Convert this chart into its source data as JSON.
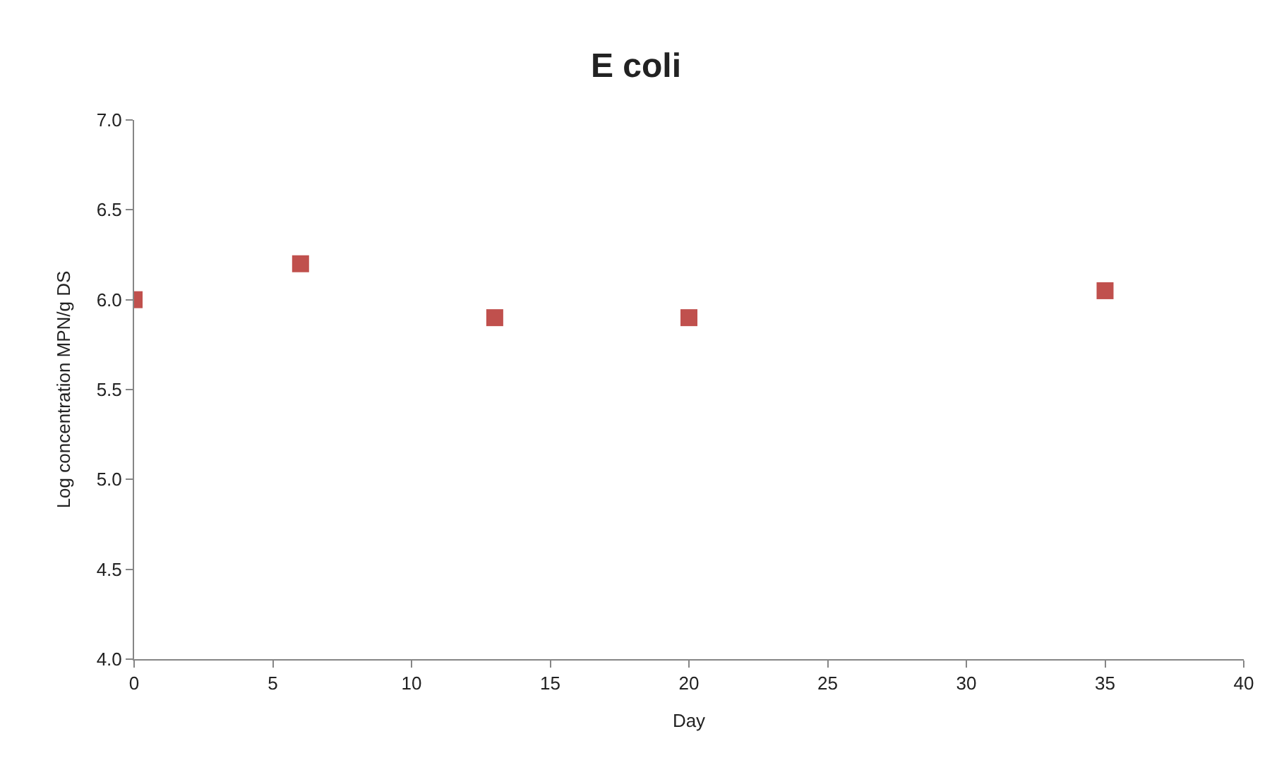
{
  "chart_data": {
    "type": "scatter",
    "title": "E coli",
    "xlabel": "Day",
    "ylabel": "Log concentration MPN/g DS",
    "x": [
      0,
      6,
      13,
      20,
      35
    ],
    "series": [
      {
        "color": "#c0504d",
        "values": [
          6.0,
          6.2,
          5.9,
          5.9,
          6.05
        ]
      }
    ],
    "xlim": [
      0,
      40
    ],
    "xticks": [
      0,
      5,
      10,
      15,
      20,
      25,
      30,
      35,
      40
    ],
    "ylim": [
      4.0,
      7.0
    ],
    "yticks": [
      {
        "value": 4.0,
        "label": "4.0"
      },
      {
        "value": 4.5,
        "label": "4.5"
      },
      {
        "value": 5.0,
        "label": "5.0"
      },
      {
        "value": 5.5,
        "label": "5.5"
      },
      {
        "value": 6.0,
        "label": "6.0"
      },
      {
        "value": 6.5,
        "label": "6.5"
      },
      {
        "value": 7.0,
        "label": "7.0"
      }
    ],
    "marker": "square"
  }
}
